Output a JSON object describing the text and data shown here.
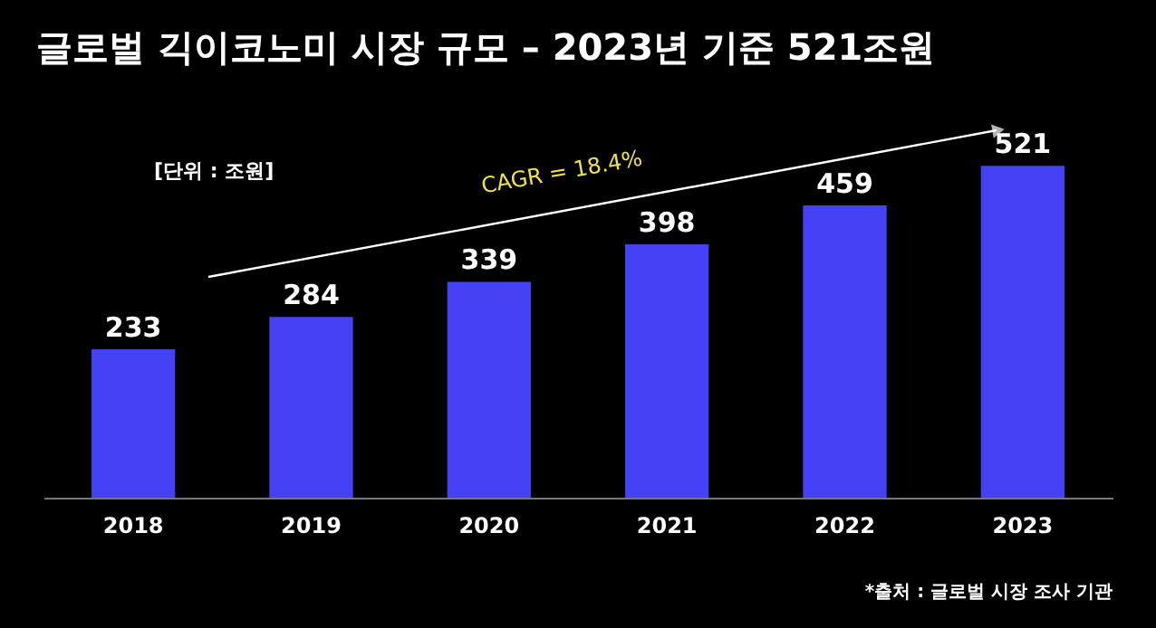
{
  "chart_data": {
    "type": "bar",
    "title": "글로벌 긱이코노미 시장 규모 – 2023년 기준 521조원",
    "categories": [
      "2018",
      "2019",
      "2020",
      "2021",
      "2022",
      "2023"
    ],
    "values": [
      233,
      284,
      339,
      398,
      459,
      521
    ],
    "color": "#4343f5",
    "data_labels": true,
    "grid": false,
    "annotations": [
      "[단위 : 조원]",
      "CAGR = 18.4%",
      "*출처 : 글로벌 시장 조사 기관"
    ]
  }
}
